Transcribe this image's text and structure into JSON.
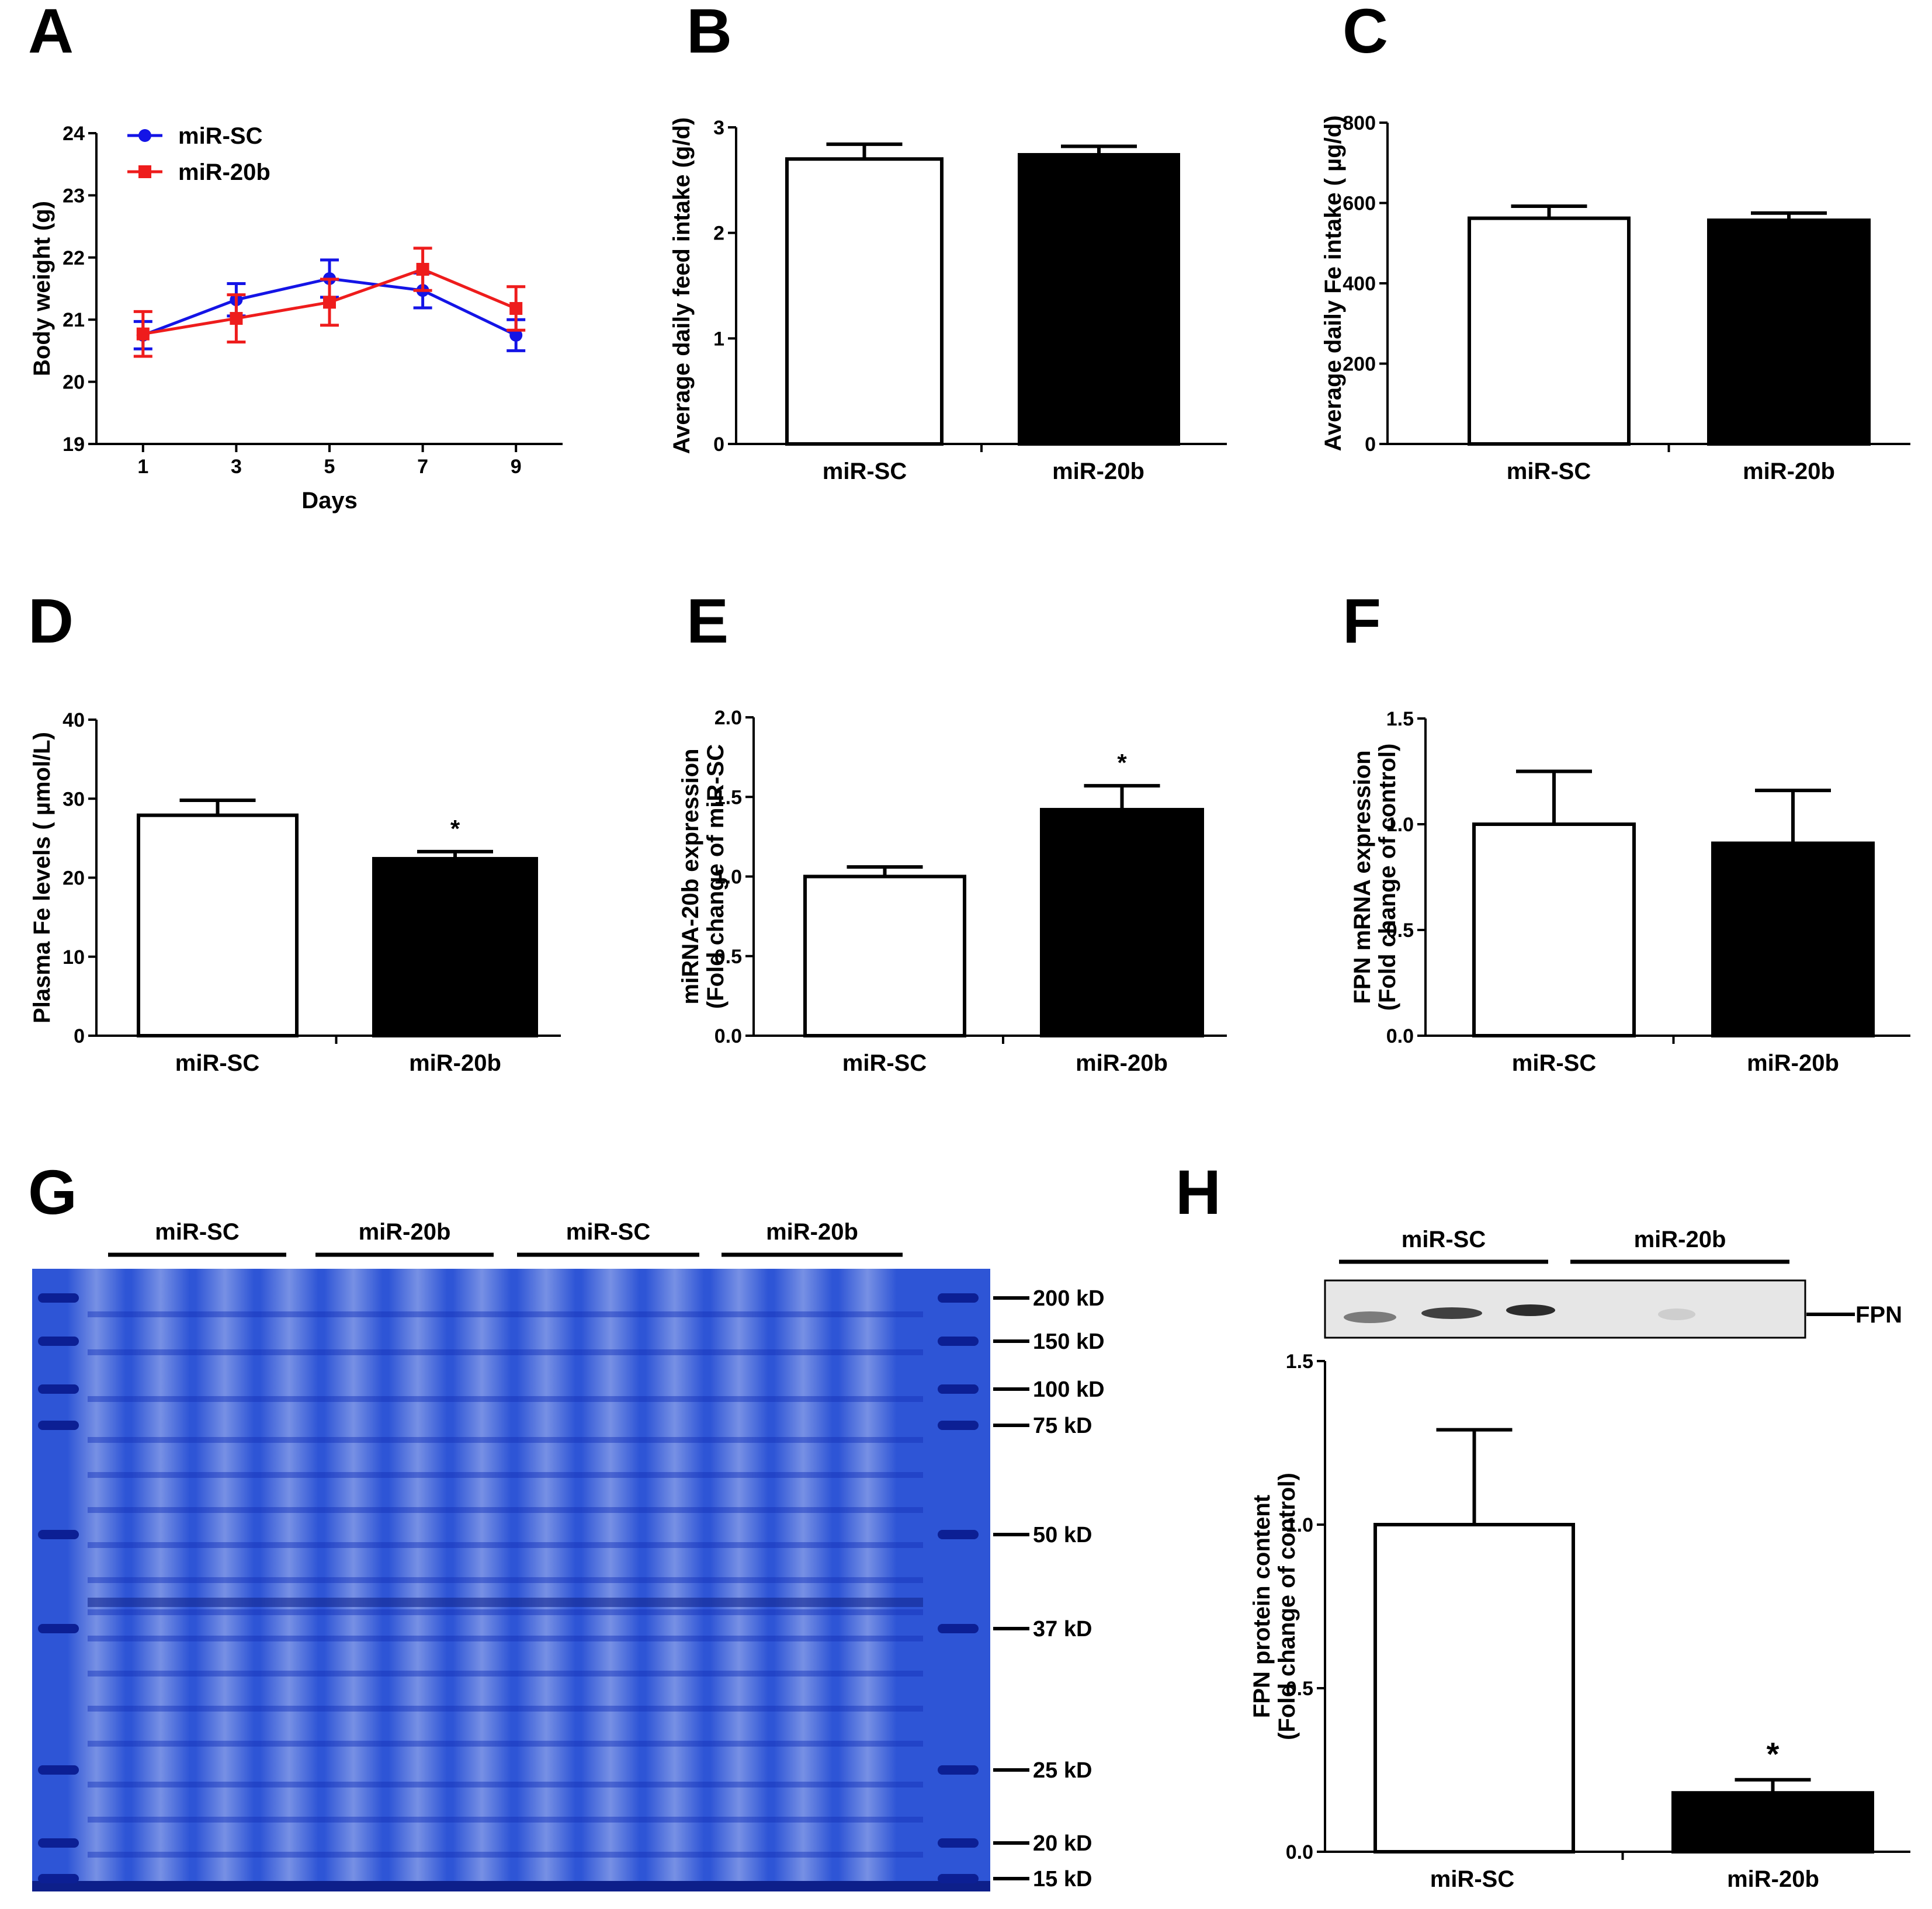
{
  "colors": {
    "sc": "#1414e6",
    "b20": "#ee1c1c",
    "bar_sc": "#ffffff",
    "bar_20b": "#000000",
    "gel_bg": "#2e55d6",
    "gel_band": "#1330b8"
  },
  "chart_data": [
    {
      "id": "A",
      "panel_label": "A",
      "type": "line",
      "ylabel": "Body weight (g)",
      "xlabel": "Days",
      "x": [
        1,
        3,
        5,
        7,
        9
      ],
      "xlim": [
        0,
        10
      ],
      "xticks": [
        "1",
        "3",
        "5",
        "7",
        "9"
      ],
      "ylim": [
        19,
        24
      ],
      "yticks": [
        "19",
        "20",
        "21",
        "22",
        "23",
        "24"
      ],
      "series": [
        {
          "name": "miR-SC",
          "color": "#1414e6",
          "marker": "circle",
          "values": [
            20.75,
            21.32,
            21.66,
            21.47,
            20.75
          ],
          "errors": [
            0.22,
            0.26,
            0.3,
            0.28,
            0.25
          ]
        },
        {
          "name": "miR-20b",
          "color": "#ee1c1c",
          "marker": "square",
          "values": [
            20.77,
            21.02,
            21.28,
            21.81,
            21.18
          ],
          "errors": [
            0.36,
            0.38,
            0.37,
            0.34,
            0.35
          ]
        }
      ]
    },
    {
      "id": "B",
      "panel_label": "B",
      "type": "bar",
      "ylabel": "Average daily feed intake (g/d)",
      "categories": [
        "miR-SC",
        "miR-20b"
      ],
      "values": [
        2.7,
        2.74
      ],
      "errors": [
        0.14,
        0.08
      ],
      "ylim": [
        0,
        3
      ],
      "yticks": [
        "0",
        "1",
        "2",
        "3"
      ],
      "significance": [
        "",
        ""
      ]
    },
    {
      "id": "C",
      "panel_label": "C",
      "type": "bar",
      "ylabel": "Average daily Fe intake ( µg/d)",
      "categories": [
        "miR-SC",
        "miR-20b"
      ],
      "values": [
        562,
        557
      ],
      "errors": [
        30,
        18
      ],
      "ylim": [
        0,
        800
      ],
      "yticks": [
        "0",
        "200",
        "400",
        "600",
        "800"
      ],
      "significance": [
        "",
        ""
      ]
    },
    {
      "id": "D",
      "panel_label": "D",
      "type": "bar",
      "ylabel": "Plasma Fe levels ( µmol/L)",
      "categories": [
        "miR-SC",
        "miR-20b"
      ],
      "values": [
        27.9,
        22.4
      ],
      "errors": [
        1.9,
        0.9
      ],
      "ylim": [
        0,
        40
      ],
      "yticks": [
        "0",
        "10",
        "20",
        "30",
        "40"
      ],
      "significance": [
        "",
        "*"
      ]
    },
    {
      "id": "E",
      "panel_label": "E",
      "type": "bar",
      "ylabel": "miRNA-20b expression",
      "ylabel2": "(Fold change of miR-SC",
      "categories": [
        "miR-SC",
        "miR-20b"
      ],
      "values": [
        1.0,
        1.42
      ],
      "errors": [
        0.06,
        0.15
      ],
      "ylim": [
        0,
        2
      ],
      "yticks": [
        "0.0",
        "0.5",
        "1.0",
        "1.5",
        "2.0"
      ],
      "significance": [
        "",
        "*"
      ]
    },
    {
      "id": "F",
      "panel_label": "F",
      "type": "bar",
      "ylabel": "FPN mRNA expression",
      "ylabel2": "(Fold change of control)",
      "categories": [
        "miR-SC",
        "miR-20b"
      ],
      "values": [
        1.0,
        0.91
      ],
      "errors": [
        0.25,
        0.25
      ],
      "ylim": [
        0,
        1.5
      ],
      "yticks": [
        "0.0",
        "0.5",
        "1.0",
        "1.5"
      ],
      "significance": [
        "",
        ""
      ]
    },
    {
      "id": "H",
      "panel_label": "H",
      "type": "bar",
      "ylabel": "FPN protein content",
      "ylabel2": "(Fold change of control)",
      "categories": [
        "miR-SC",
        "miR-20b"
      ],
      "values": [
        1.0,
        0.18
      ],
      "errors": [
        0.29,
        0.04
      ],
      "ylim": [
        0,
        1.5
      ],
      "yticks": [
        "0.0",
        "0.5",
        "1.0",
        "1.5"
      ],
      "significance": [
        "",
        "*"
      ]
    }
  ],
  "gel": {
    "panel_label": "G",
    "groups": [
      "miR-SC",
      "miR-20b",
      "miR-SC",
      "miR-20b"
    ],
    "markers": [
      "200 kD",
      "150 kD",
      "100 kD",
      "75 kD",
      "50 kD",
      "37 kD",
      "25 kD",
      "20 kD",
      "15 kD"
    ]
  },
  "blot": {
    "groups": [
      "miR-SC",
      "miR-20b"
    ],
    "label": "FPN"
  }
}
